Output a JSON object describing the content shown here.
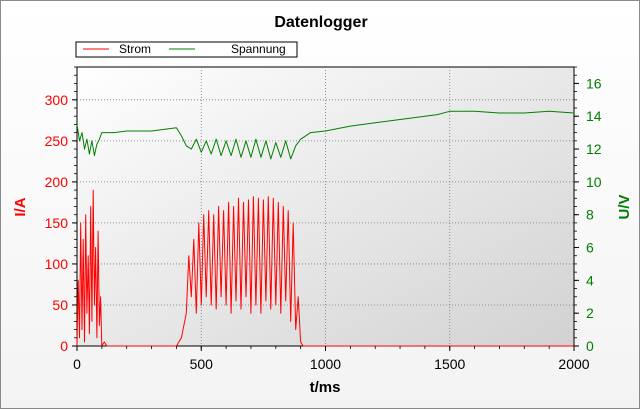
{
  "chart_data": {
    "type": "line",
    "title": "Datenlogger",
    "xlabel": "t/ms",
    "ylabel_left": "I/A",
    "ylabel_right": "U/V",
    "xlim": [
      0,
      2000
    ],
    "ylim_left": [
      0,
      340
    ],
    "ylim_right": [
      0,
      17
    ],
    "x_ticks": [
      "0",
      "500",
      "1000",
      "1500",
      "2000"
    ],
    "y_left_ticks": [
      "0",
      "50",
      "100",
      "150",
      "200",
      "250",
      "300"
    ],
    "y_right_ticks": [
      "0",
      "2",
      "4",
      "6",
      "8",
      "10",
      "12",
      "14",
      "16"
    ],
    "grid": true,
    "legend_position": "top-left",
    "colors": {
      "strom": "#ff0000",
      "spannung": "#008000",
      "left_axis": "#ff0000",
      "right_axis": "#008000"
    },
    "series": [
      {
        "name": "Strom",
        "axis": "left",
        "x": [
          0,
          5,
          10,
          15,
          20,
          25,
          30,
          35,
          40,
          45,
          50,
          55,
          60,
          65,
          70,
          75,
          80,
          85,
          90,
          95,
          100,
          110,
          120,
          400,
          420,
          440,
          450,
          460,
          470,
          480,
          490,
          500,
          510,
          520,
          530,
          540,
          550,
          560,
          570,
          580,
          590,
          600,
          610,
          620,
          630,
          640,
          650,
          660,
          670,
          680,
          690,
          700,
          710,
          720,
          730,
          740,
          750,
          760,
          770,
          780,
          790,
          800,
          810,
          820,
          830,
          840,
          850,
          860,
          870,
          880,
          890,
          900,
          910,
          1000,
          2000
        ],
        "values": [
          0,
          80,
          10,
          150,
          20,
          130,
          5,
          160,
          40,
          110,
          15,
          170,
          30,
          190,
          50,
          120,
          10,
          140,
          25,
          60,
          0,
          5,
          0,
          0,
          10,
          40,
          110,
          60,
          130,
          40,
          150,
          50,
          160,
          60,
          165,
          50,
          160,
          45,
          170,
          60,
          165,
          50,
          175,
          40,
          170,
          55,
          180,
          45,
          175,
          60,
          178,
          40,
          182,
          50,
          180,
          40,
          178,
          55,
          182,
          45,
          180,
          50,
          175,
          40,
          170,
          55,
          165,
          30,
          150,
          20,
          60,
          5,
          0,
          0,
          0
        ]
      },
      {
        "name": "Spannung",
        "axis": "right",
        "x": [
          0,
          10,
          20,
          30,
          40,
          50,
          60,
          70,
          80,
          90,
          100,
          150,
          200,
          300,
          350,
          400,
          420,
          440,
          460,
          480,
          500,
          520,
          540,
          560,
          580,
          600,
          620,
          640,
          660,
          680,
          700,
          720,
          740,
          760,
          780,
          800,
          820,
          840,
          860,
          880,
          900,
          920,
          940,
          1000,
          1100,
          1200,
          1300,
          1400,
          1450,
          1500,
          1600,
          1700,
          1800,
          1900,
          2000
        ],
        "values": [
          13.5,
          12.5,
          13.0,
          12.0,
          12.6,
          11.7,
          12.5,
          11.6,
          12.3,
          12.6,
          13.0,
          13.0,
          13.1,
          13.1,
          13.2,
          13.3,
          12.8,
          12.2,
          12.0,
          12.6,
          11.8,
          12.5,
          11.7,
          12.6,
          11.6,
          12.5,
          11.6,
          12.6,
          11.5,
          12.5,
          11.5,
          12.6,
          11.5,
          12.5,
          11.4,
          12.4,
          11.5,
          12.5,
          11.4,
          12.2,
          12.6,
          12.8,
          13.0,
          13.1,
          13.4,
          13.6,
          13.8,
          14.0,
          14.1,
          14.3,
          14.3,
          14.2,
          14.2,
          14.3,
          14.2
        ]
      }
    ]
  }
}
